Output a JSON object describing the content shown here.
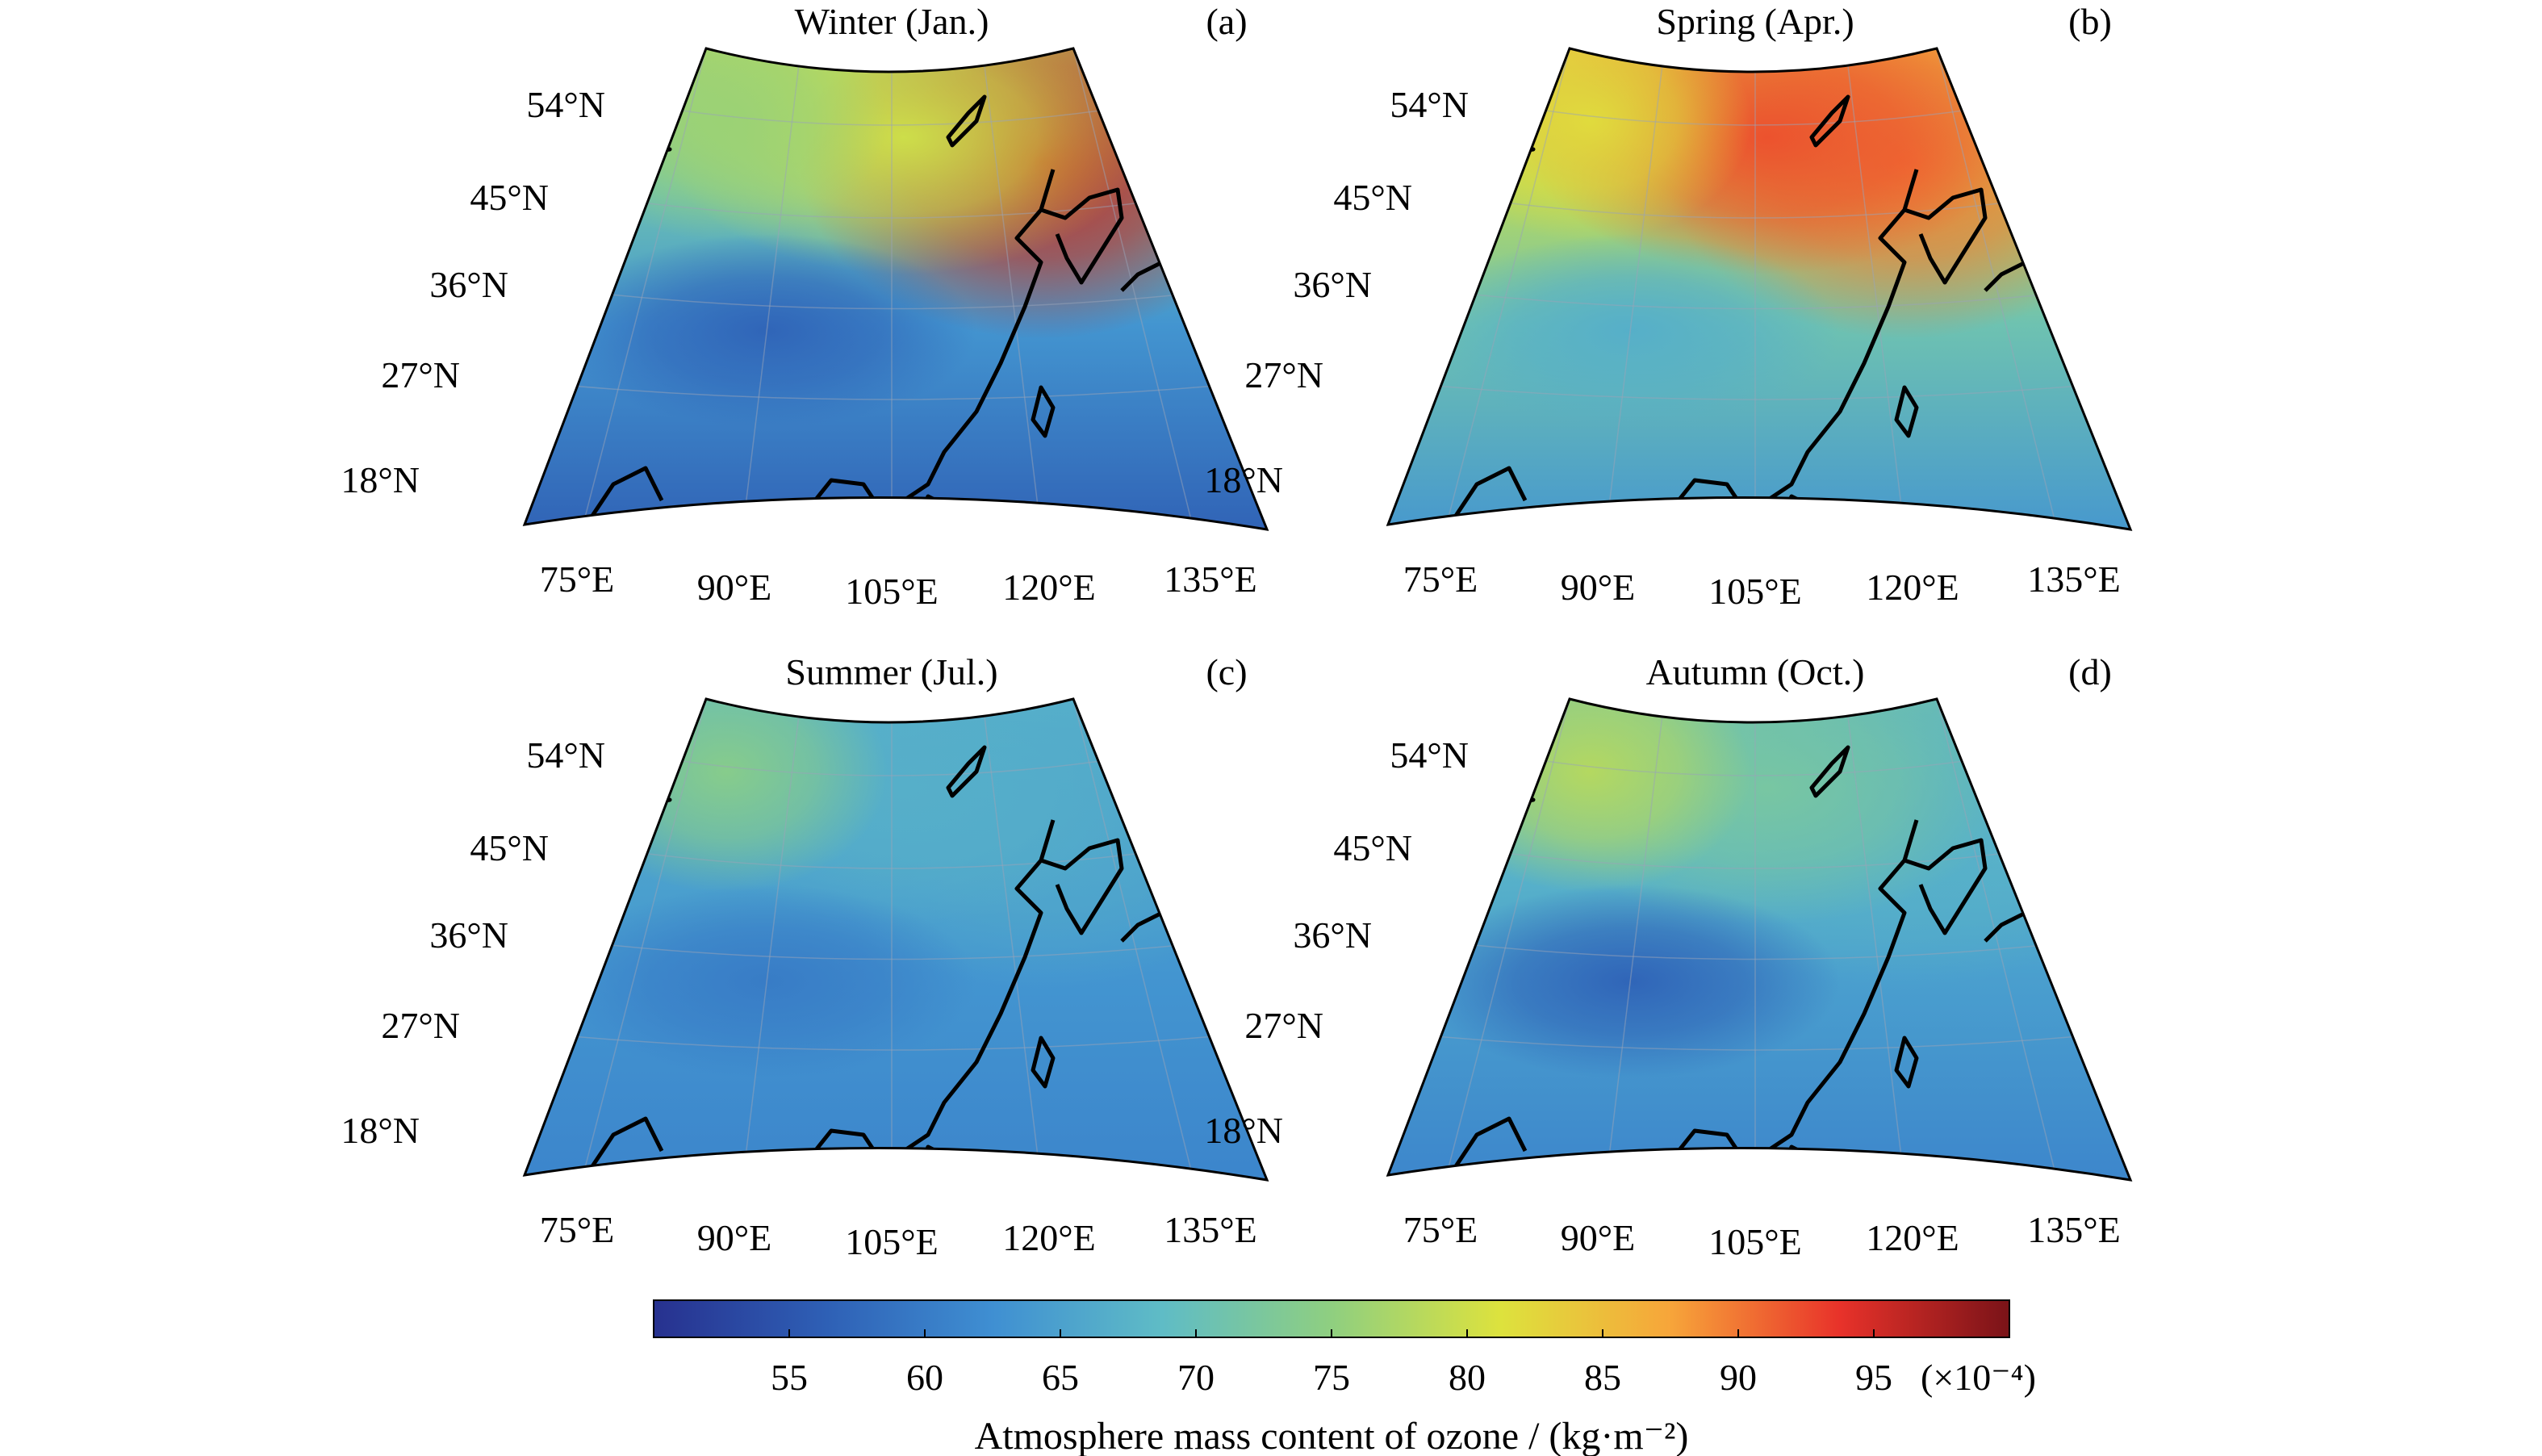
{
  "chart_data": {
    "type": "heatmap",
    "colorbar": {
      "ticks": [
        "55",
        "60",
        "65",
        "70",
        "75",
        "80",
        "85",
        "90",
        "95"
      ],
      "tick_values": [
        55,
        60,
        65,
        70,
        75,
        80,
        85,
        90,
        95
      ],
      "range": [
        50,
        100
      ],
      "unit_label": "(×10⁻⁴)",
      "title": "Atmosphere mass content of ozone / (kg·m⁻²)",
      "colors": [
        "#27318f",
        "#2e5fb5",
        "#3f8fd2",
        "#5fbcc6",
        "#8fcf80",
        "#dde23d",
        "#f7a53a",
        "#e8322a",
        "#7a1318"
      ]
    },
    "lat_ticks": [
      "54°N",
      "45°N",
      "36°N",
      "27°N",
      "18°N"
    ],
    "lon_ticks": [
      "75°E",
      "90°E",
      "105°E",
      "120°E",
      "135°E"
    ],
    "panels": [
      {
        "title": "Winter (Jan.)",
        "letter": "(a)",
        "field": {
          "south": 56,
          "north": 78,
          "northeast": 96,
          "northwest": 76,
          "northern_centre": 80,
          "tibet": 57
        }
      },
      {
        "title": "Spring (Apr.)",
        "letter": "(b)",
        "field": {
          "south": 63,
          "north": 86,
          "northeast": 90,
          "northwest": 82,
          "northern_centre": 92,
          "tibet": 67
        }
      },
      {
        "title": "Summer (Jul.)",
        "letter": "(c)",
        "field": {
          "south": 61,
          "north": 68,
          "northeast": 66,
          "northwest": 74,
          "northern_centre": 67,
          "tibet": 60
        }
      },
      {
        "title": "Autumn (Oct.)",
        "letter": "(d)",
        "field": {
          "south": 61,
          "north": 72,
          "northeast": 67,
          "northwest": 78,
          "northern_centre": 72,
          "tibet": 57
        }
      }
    ]
  }
}
